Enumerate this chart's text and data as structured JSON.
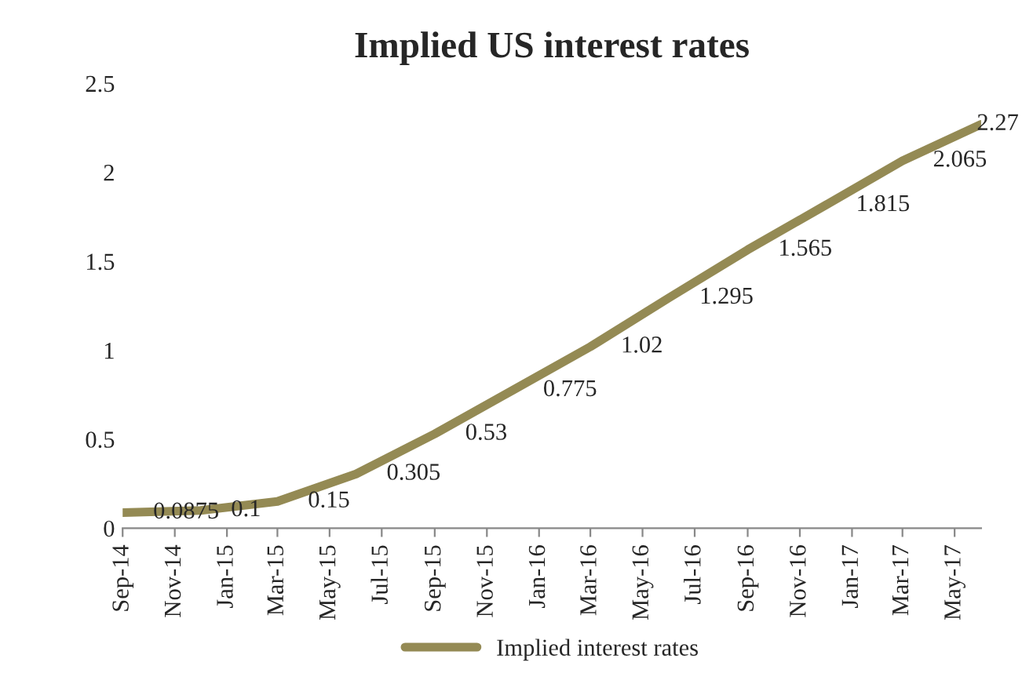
{
  "chart_data": {
    "type": "line",
    "title": "Implied US interest rates",
    "x": [
      "2014-09",
      "2014-12",
      "2015-03",
      "2015-06",
      "2015-09",
      "2015-12",
      "2016-03",
      "2016-06",
      "2016-09",
      "2016-12",
      "2017-03",
      "2017-06"
    ],
    "series": [
      {
        "name": "Implied interest rates",
        "color": "#948a54",
        "values": [
          0.0875,
          0.1,
          0.15,
          0.305,
          0.53,
          0.775,
          1.02,
          1.295,
          1.565,
          1.815,
          2.065,
          2.27
        ]
      }
    ],
    "data_labels": true,
    "xlim": [
      "2014-09",
      "2017-06"
    ],
    "xticks": [
      {
        "value": "2014-09",
        "label": "Sep-14"
      },
      {
        "value": "2014-11",
        "label": "Nov-14"
      },
      {
        "value": "2015-01",
        "label": "Jan-15"
      },
      {
        "value": "2015-03",
        "label": "Mar-15"
      },
      {
        "value": "2015-05",
        "label": "May-15"
      },
      {
        "value": "2015-07",
        "label": "Jul-15"
      },
      {
        "value": "2015-09",
        "label": "Sep-15"
      },
      {
        "value": "2015-11",
        "label": "Nov-15"
      },
      {
        "value": "2016-01",
        "label": "Jan-16"
      },
      {
        "value": "2016-03",
        "label": "Mar-16"
      },
      {
        "value": "2016-05",
        "label": "May-16"
      },
      {
        "value": "2016-07",
        "label": "Jul-16"
      },
      {
        "value": "2016-09",
        "label": "Sep-16"
      },
      {
        "value": "2016-11",
        "label": "Nov-16"
      },
      {
        "value": "2017-01",
        "label": "Jan-17"
      },
      {
        "value": "2017-03",
        "label": "Mar-17"
      },
      {
        "value": "2017-05",
        "label": "May-17"
      }
    ],
    "ylim": [
      0,
      2.5
    ],
    "yticks": [
      0,
      0.5,
      1,
      1.5,
      2,
      2.5
    ],
    "grid": false,
    "legend": "bottom",
    "line_style": "solid",
    "marker": "none"
  }
}
